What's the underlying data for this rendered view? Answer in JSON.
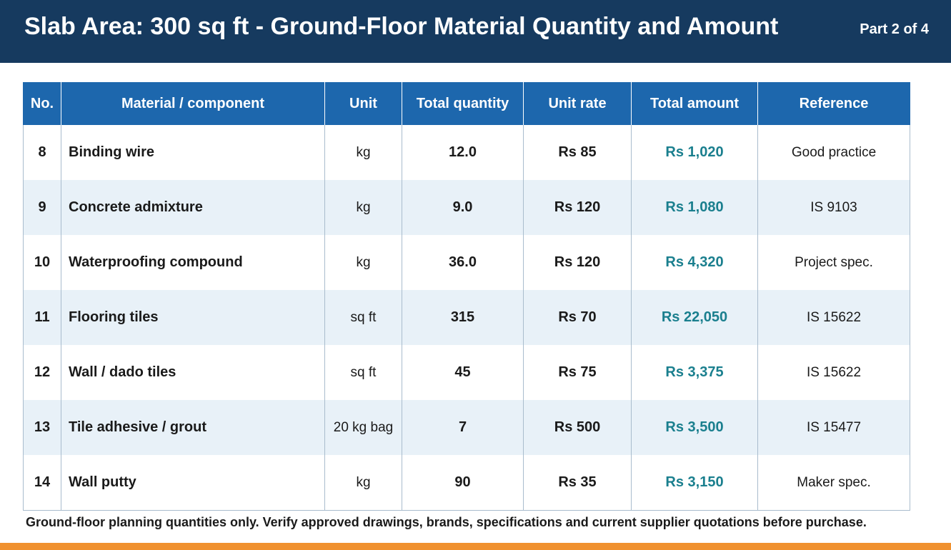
{
  "header": {
    "title": "Slab Area: 300 sq ft - Ground-Floor Material Quantity and Amount",
    "part": "Part 2 of 4"
  },
  "table": {
    "columns": [
      "No.",
      "Material / component",
      "Unit",
      "Total quantity",
      "Unit rate",
      "Total amount",
      "Reference"
    ],
    "rows": [
      {
        "no": "8",
        "material": "Binding wire",
        "unit": "kg",
        "qty": "12.0",
        "rate": "Rs 85",
        "amount": "Rs 1,020",
        "ref": "Good practice"
      },
      {
        "no": "9",
        "material": "Concrete admixture",
        "unit": "kg",
        "qty": "9.0",
        "rate": "Rs 120",
        "amount": "Rs 1,080",
        "ref": "IS 9103"
      },
      {
        "no": "10",
        "material": "Waterproofing compound",
        "unit": "kg",
        "qty": "36.0",
        "rate": "Rs 120",
        "amount": "Rs 4,320",
        "ref": "Project spec."
      },
      {
        "no": "11",
        "material": "Flooring tiles",
        "unit": "sq ft",
        "qty": "315",
        "rate": "Rs 70",
        "amount": "Rs 22,050",
        "ref": "IS 15622"
      },
      {
        "no": "12",
        "material": "Wall / dado tiles",
        "unit": "sq ft",
        "qty": "45",
        "rate": "Rs 75",
        "amount": "Rs 3,375",
        "ref": "IS 15622"
      },
      {
        "no": "13",
        "material": "Tile adhesive / grout",
        "unit": "20 kg bag",
        "qty": "7",
        "rate": "Rs 500",
        "amount": "Rs 3,500",
        "ref": "IS 15477"
      },
      {
        "no": "14",
        "material": "Wall putty",
        "unit": "kg",
        "qty": "90",
        "rate": "Rs 35",
        "amount": "Rs 3,150",
        "ref": "Maker spec."
      }
    ]
  },
  "footnote": "Ground-floor planning quantities only. Verify approved drawings, brands, specifications and current supplier quotations before purchase.",
  "colors": {
    "header_bg": "#163a5f",
    "table_header_bg": "#1d67ad",
    "amount_text": "#1a7f8e",
    "stripe": "#e8f1f8",
    "accent_bar": "#f0912f"
  }
}
